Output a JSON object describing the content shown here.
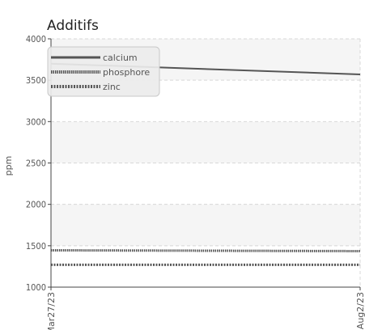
{
  "chart_data": {
    "type": "line",
    "title": "Additifs",
    "xlabel": "",
    "ylabel": "ppm",
    "ylim": [
      1000,
      4000
    ],
    "yticks": [
      "1000",
      "1500",
      "2000",
      "2500",
      "3000",
      "3500",
      "4000"
    ],
    "x": [
      "Mar27/23",
      "Aug2/23"
    ],
    "series": [
      {
        "name": "calcium",
        "values": [
          3700,
          3570
        ],
        "color": "#555555",
        "style": "solid"
      },
      {
        "name": "phosphore",
        "values": [
          1445,
          1435
        ],
        "color": "#555555",
        "style": "dense-dotted"
      },
      {
        "name": "zinc",
        "values": [
          1270,
          1270
        ],
        "color": "#555555",
        "style": "dotted"
      }
    ],
    "grid": true,
    "legend": "top-left"
  }
}
